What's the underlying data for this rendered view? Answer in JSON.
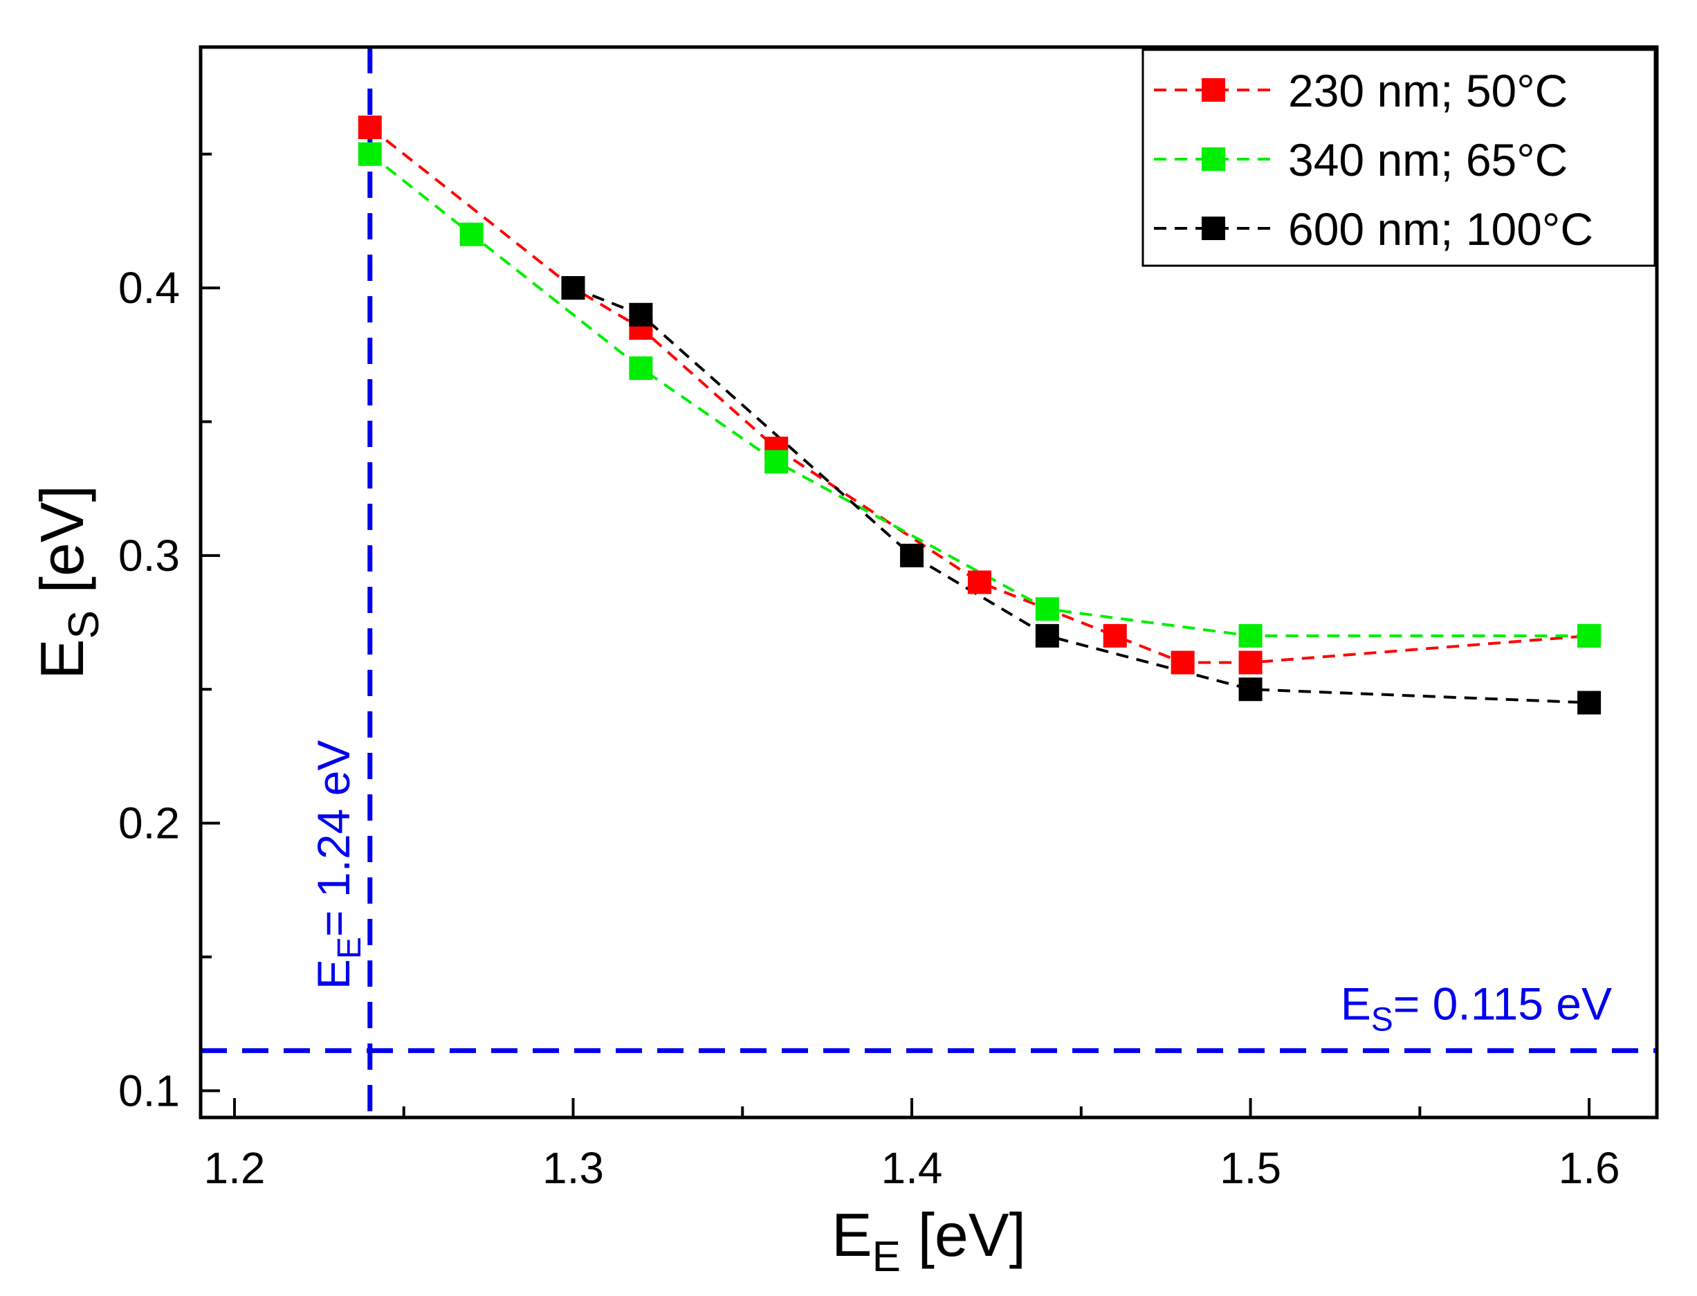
{
  "chart_data": {
    "type": "line",
    "xlabel": {
      "main": "E",
      "sub": "E",
      "rest": " [eV]"
    },
    "ylabel": {
      "main": "E",
      "sub": "S",
      "rest": " [eV]"
    },
    "xlim": [
      1.19,
      1.62
    ],
    "ylim": [
      0.09,
      0.49
    ],
    "x_ticks": [
      1.2,
      1.3,
      1.4,
      1.5,
      1.6
    ],
    "x_tick_labels": [
      "1.2",
      "1.3",
      "1.4",
      "1.5",
      "1.6"
    ],
    "x_minor_ticks": [
      1.25,
      1.35,
      1.45,
      1.55
    ],
    "y_ticks": [
      0.1,
      0.2,
      0.3,
      0.4
    ],
    "y_tick_labels": [
      "0.1",
      "0.2",
      "0.3",
      "0.4"
    ],
    "y_minor_ticks": [
      0.15,
      0.25,
      0.35,
      0.45
    ],
    "grid": false,
    "legend_position": "top-right",
    "series": [
      {
        "name": "230 nm; 50°C",
        "color": "#ff0000",
        "marker": "square",
        "line_style": "dashed",
        "x": [
          1.24,
          1.3,
          1.32,
          1.36,
          1.42,
          1.46,
          1.48,
          1.5,
          1.6
        ],
        "y": [
          0.46,
          0.4,
          0.385,
          0.34,
          0.29,
          0.27,
          0.26,
          0.26,
          0.27
        ]
      },
      {
        "name": "340 nm; 65°C",
        "color": "#00ee00",
        "marker": "square",
        "line_style": "dashed",
        "x": [
          1.24,
          1.27,
          1.32,
          1.36,
          1.44,
          1.5,
          1.6
        ],
        "y": [
          0.45,
          0.42,
          0.37,
          0.335,
          0.28,
          0.27,
          0.27
        ]
      },
      {
        "name": "600 nm; 100°C",
        "color": "#000000",
        "marker": "square",
        "line_style": "dashed",
        "x": [
          1.3,
          1.32,
          1.4,
          1.44,
          1.5,
          1.6
        ],
        "y": [
          0.4,
          0.39,
          0.3,
          0.27,
          0.25,
          0.245
        ]
      }
    ],
    "reference_lines": [
      {
        "orientation": "vertical",
        "value": 1.24,
        "color": "#0000ee",
        "label": {
          "main": "E",
          "sub": "E",
          "rest": "= 1.24 eV"
        }
      },
      {
        "orientation": "horizontal",
        "value": 0.115,
        "color": "#0000ee",
        "label": {
          "main": "E",
          "sub": "S",
          "rest": "= 0.115 eV"
        }
      }
    ]
  }
}
